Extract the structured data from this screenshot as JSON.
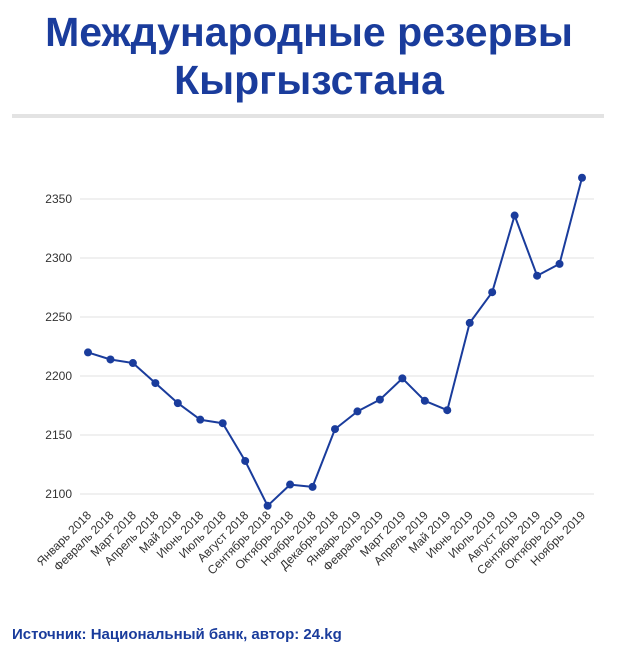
{
  "title": {
    "line1": "Международные резервы",
    "line2": "Кыргызстана"
  },
  "source": "Источник: Национальный банк, автор: 24.kg",
  "colors": {
    "title": "#1a3c9c",
    "line": "#1a3c9c",
    "point": "#1a3c9c",
    "grid": "#e2e2e2",
    "tick_text": "#333333"
  },
  "chart_data": {
    "type": "line",
    "title": "Международные резервы Кыргызстана",
    "xlabel": "",
    "ylabel": "",
    "ylim": [
      2075,
      2400
    ],
    "yticks": [
      2100,
      2150,
      2200,
      2250,
      2300,
      2350
    ],
    "grid": true,
    "legend": "none",
    "categories": [
      "Январь 2018",
      "Февраль 2018",
      "Март 2018",
      "Апрель 2018",
      "Май 2018",
      "Июнь 2018",
      "Июль 2018",
      "Август 2018",
      "Сентябрь 2018",
      "Октябрь 2018",
      "Ноябрь 2018",
      "Декабрь 2018",
      "Январь 2019",
      "Февраль 2019",
      "Март 2019",
      "Апрель 2019",
      "Май 2019",
      "Июнь 2019",
      "Июль 2019",
      "Август 2019",
      "Сентябрь 2019",
      "Октябрь 2019",
      "Ноябрь 2019"
    ],
    "series": [
      {
        "values": [
          2220,
          2214,
          2211,
          2194,
          2177,
          2163,
          2160,
          2128,
          2090,
          2108,
          2106,
          2155,
          2170,
          2180,
          2198,
          2179,
          2171,
          2245,
          2271,
          2336,
          2285,
          2295,
          2368
        ]
      }
    ]
  }
}
